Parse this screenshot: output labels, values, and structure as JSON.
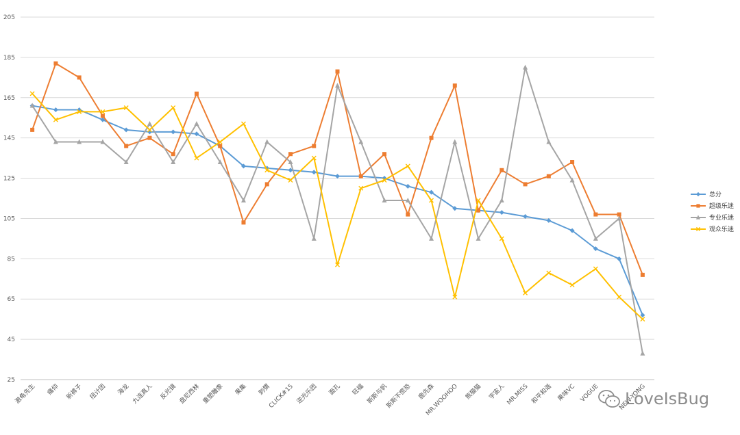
{
  "chart_data": {
    "type": "line",
    "ylim": [
      25,
      205
    ],
    "yticks": [
      25,
      45,
      65,
      85,
      105,
      125,
      145,
      165,
      185,
      205
    ],
    "grid": true,
    "legend_position": "right",
    "categories": [
      "激龟先生",
      "痛仰",
      "新裤子",
      "扭计团",
      "海龙",
      "九连真人",
      "反光镜",
      "盘尼西林",
      "重塑雕像",
      "果集",
      "刺猬",
      "CLICK#15",
      "逆光乐团",
      "面孔",
      "旺福",
      "斯斯与帆",
      "斯斯不慌恐",
      "鹿先森",
      "MR.WOOHOO",
      "熊猫猫",
      "宇宙人",
      "MR.MISS",
      "和平和谐",
      "果味VC",
      "VOGUE",
      "",
      "NEW-YONG"
    ],
    "series": [
      {
        "name": "总分",
        "color": "#5b9bd5",
        "marker": "diamond",
        "values": [
          161,
          159,
          159,
          154,
          149,
          148,
          148,
          147,
          141,
          131,
          130,
          129,
          128,
          126,
          126,
          125,
          121,
          118,
          110,
          109,
          108,
          106,
          104,
          99,
          90,
          85,
          57
        ]
      },
      {
        "name": "超级乐迷",
        "color": "#ed7d31",
        "marker": "square",
        "values": [
          149,
          182,
          175,
          156,
          141,
          145,
          137,
          167,
          141,
          103,
          122,
          137,
          141,
          178,
          126,
          137,
          107,
          145,
          171,
          109,
          129,
          122,
          126,
          133,
          107,
          107,
          77
        ]
      },
      {
        "name": "专业乐迷",
        "color": "#a5a5a5",
        "marker": "triangle",
        "values": [
          161,
          143,
          143,
          143,
          133,
          152,
          133,
          152,
          133,
          114,
          143,
          133,
          95,
          171,
          143,
          114,
          114,
          95,
          143,
          95,
          114,
          180,
          143,
          124,
          95,
          105,
          38
        ]
      },
      {
        "name": "观众乐迷",
        "color": "#ffc000",
        "marker": "x",
        "values": [
          167,
          154,
          158,
          158,
          160,
          149,
          160,
          135,
          143,
          152,
          129,
          124,
          135,
          82,
          120,
          124,
          131,
          114,
          66,
          114,
          95,
          68,
          78,
          72,
          80,
          66,
          55
        ]
      }
    ]
  },
  "watermark": {
    "text": "LoveIsBug",
    "icon": "wechat-icon"
  }
}
